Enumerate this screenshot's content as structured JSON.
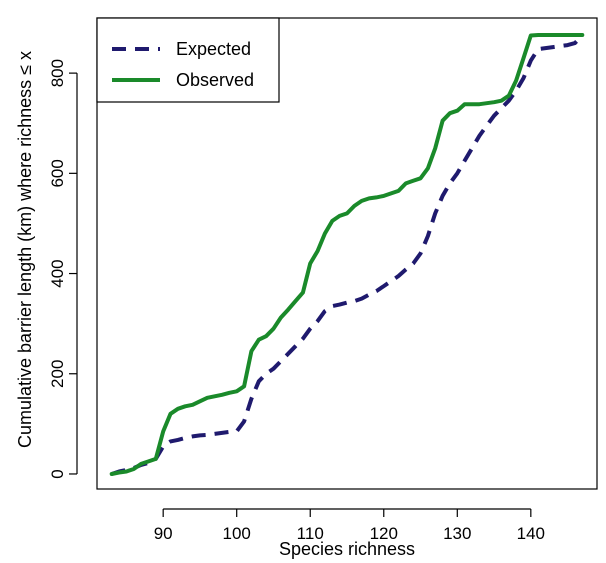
{
  "chart_data": {
    "type": "line",
    "title": "",
    "xlabel": "Species richness",
    "ylabel": "Cumulative barrier length (km) where richness ≤ x",
    "xlim": [
      81,
      149
    ],
    "ylim": [
      -30,
      910
    ],
    "xticks": [
      90,
      100,
      110,
      120,
      130,
      140
    ],
    "yticks": [
      0,
      200,
      400,
      600,
      800
    ],
    "grid": false,
    "legend_position": "top-left",
    "series": [
      {
        "name": "Expected",
        "color": "#1f1a6e",
        "style": "dashed",
        "x": [
          83,
          84,
          85,
          86,
          87,
          88,
          89,
          90,
          91,
          92,
          93,
          94,
          95,
          96,
          97,
          98,
          99,
          100,
          101,
          102,
          103,
          104,
          105,
          106,
          107,
          108,
          109,
          110,
          111,
          112,
          113,
          114,
          115,
          116,
          117,
          118,
          119,
          120,
          121,
          122,
          123,
          124,
          125,
          126,
          127,
          128,
          129,
          130,
          131,
          132,
          133,
          134,
          135,
          136,
          137,
          138,
          139,
          140,
          141,
          142,
          143,
          144,
          145,
          146,
          147
        ],
        "y": [
          0,
          5,
          8,
          12,
          18,
          22,
          30,
          55,
          65,
          68,
          72,
          75,
          77,
          78,
          80,
          82,
          84,
          85,
          105,
          150,
          185,
          200,
          210,
          225,
          240,
          255,
          270,
          290,
          305,
          325,
          335,
          338,
          342,
          345,
          350,
          358,
          365,
          375,
          385,
          395,
          408,
          420,
          440,
          475,
          520,
          555,
          580,
          600,
          625,
          650,
          675,
          695,
          715,
          730,
          745,
          765,
          790,
          825,
          848,
          850,
          852,
          854,
          856,
          860,
          875
        ]
      },
      {
        "name": "Observed",
        "color": "#1a8a2a",
        "style": "solid",
        "x": [
          83,
          84,
          85,
          86,
          87,
          88,
          89,
          90,
          91,
          92,
          93,
          94,
          95,
          96,
          97,
          98,
          99,
          100,
          101,
          102,
          103,
          104,
          105,
          106,
          107,
          108,
          109,
          110,
          111,
          112,
          113,
          114,
          115,
          116,
          117,
          118,
          119,
          120,
          121,
          122,
          123,
          124,
          125,
          126,
          127,
          128,
          129,
          130,
          131,
          132,
          133,
          134,
          135,
          136,
          137,
          138,
          139,
          140,
          141,
          142,
          143,
          144,
          145,
          146,
          147
        ],
        "y": [
          0,
          3,
          5,
          10,
          20,
          25,
          30,
          85,
          120,
          130,
          135,
          138,
          145,
          152,
          155,
          158,
          162,
          165,
          175,
          245,
          268,
          275,
          290,
          312,
          328,
          345,
          362,
          420,
          445,
          480,
          505,
          515,
          520,
          535,
          545,
          550,
          552,
          555,
          560,
          565,
          580,
          585,
          590,
          610,
          650,
          705,
          720,
          725,
          738,
          738,
          738,
          740,
          742,
          745,
          755,
          785,
          830,
          875,
          876,
          876,
          876,
          876,
          876,
          876,
          876
        ]
      }
    ]
  }
}
